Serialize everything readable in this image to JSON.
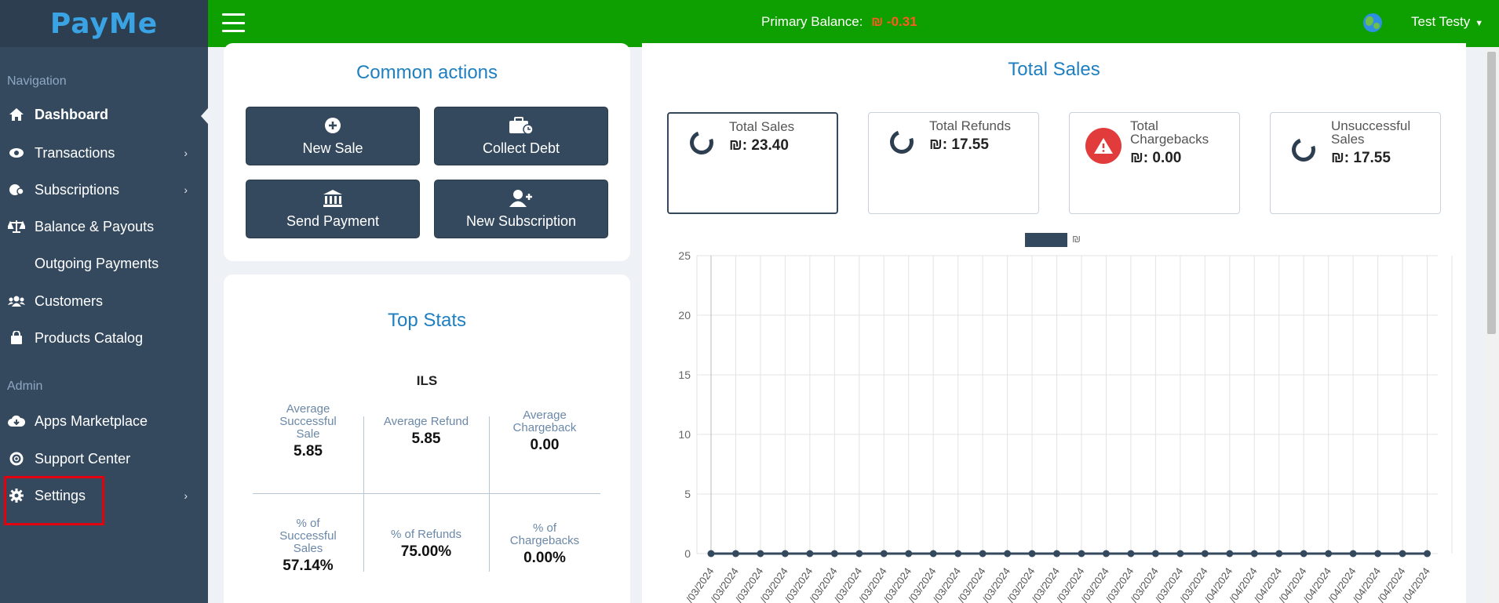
{
  "logo": "PayMe",
  "sidebar": {
    "nav_label": "Navigation",
    "admin_label": "Admin",
    "items": [
      {
        "label": "Dashboard"
      },
      {
        "label": "Transactions"
      },
      {
        "label": "Subscriptions"
      },
      {
        "label": "Balance & Payouts"
      },
      {
        "label": "Outgoing Payments"
      },
      {
        "label": "Customers"
      },
      {
        "label": "Products Catalog"
      },
      {
        "label": "Apps Marketplace"
      },
      {
        "label": "Support Center"
      },
      {
        "label": "Settings"
      }
    ]
  },
  "topbar": {
    "balance_label": "Primary Balance:",
    "balance_value": "₪ -0.31",
    "user_name": "Test Testy"
  },
  "common_actions": {
    "title": "Common actions",
    "buttons": [
      {
        "label": "New Sale"
      },
      {
        "label": "Collect Debt"
      },
      {
        "label": "Send Payment"
      },
      {
        "label": "New Subscription"
      }
    ]
  },
  "top_stats": {
    "title": "Top Stats",
    "currency": "ILS",
    "avg_success_label": "Average Successful Sale",
    "avg_success_value": "5.85",
    "avg_refund_label": "Average Refund",
    "avg_refund_value": "5.85",
    "avg_chargeback_label": "Average Chargeback",
    "avg_chargeback_value": "0.00",
    "pct_success_label": "% of Successful Sales",
    "pct_success_value": "57.14%",
    "pct_refunds_label": "% of Refunds",
    "pct_refunds_value": "75.00%",
    "pct_chargebacks_label": "% of Chargebacks",
    "pct_chargebacks_value": "0.00%"
  },
  "total_sales": {
    "title": "Total Sales",
    "boxes": [
      {
        "label": "Total Sales",
        "value": "₪: 23.40"
      },
      {
        "label": "Total Refunds",
        "value": "₪: 17.55"
      },
      {
        "label": "Total Chargebacks",
        "value": "₪: 0.00"
      },
      {
        "label": "Unsuccessful Sales",
        "value": "₪: 17.55"
      }
    ],
    "legend_label": "₪"
  },
  "colors": {
    "topbar": "#0ea000",
    "sidebar": "#34495e",
    "accent": "#1e7fc1",
    "negative": "#ff5a1f"
  },
  "chart_data": {
    "type": "line",
    "title": "",
    "ylim": [
      0,
      25
    ],
    "yticks": [
      "0",
      "5",
      "10",
      "15",
      "20",
      "25"
    ],
    "x": [
      "/03/2024",
      "/03/2024",
      "/03/2024",
      "/03/2024",
      "/03/2024",
      "/03/2024",
      "/03/2024",
      "/03/2024",
      "/03/2024",
      "/03/2024",
      "/03/2024",
      "/03/2024",
      "/03/2024",
      "/03/2024",
      "/03/2024",
      "/03/2024",
      "/03/2024",
      "/03/2024",
      "/03/2024",
      "/03/2024",
      "/03/2024",
      "/04/2024",
      "/04/2024",
      "/04/2024",
      "/04/2024",
      "/04/2024",
      "/04/2024",
      "/04/2024",
      "/04/2024",
      "/04/2024"
    ],
    "series": [
      {
        "name": "₪",
        "values": [
          0,
          0,
          0,
          0,
          0,
          0,
          0,
          0,
          0,
          0,
          0,
          0,
          0,
          0,
          0,
          0,
          0,
          0,
          0,
          0,
          0,
          0,
          0,
          0,
          0,
          0,
          0,
          0,
          0,
          0
        ]
      }
    ],
    "grid": true
  }
}
